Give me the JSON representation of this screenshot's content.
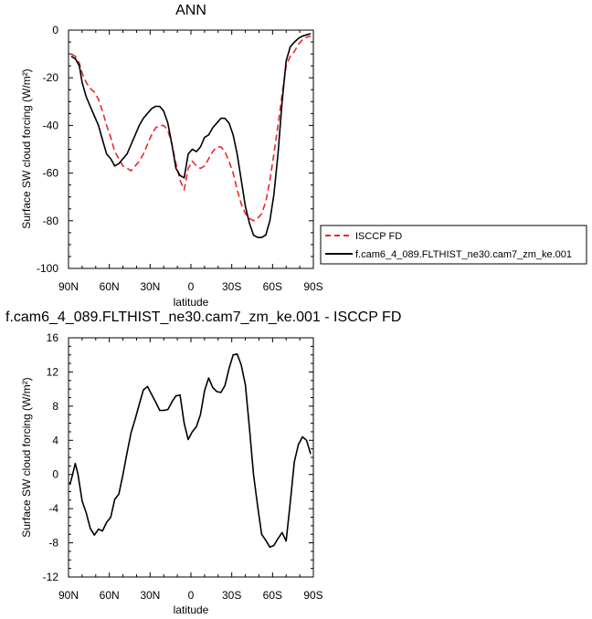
{
  "chart_data": [
    {
      "type": "line",
      "title": "ANN",
      "xlabel": "latitude",
      "ylabel": "Surface SW cloud forcing (W/m²)",
      "xlim": [
        90,
        -90
      ],
      "ylim": [
        -100,
        0
      ],
      "x_ticks": [
        {
          "value": 90,
          "label": "90N"
        },
        {
          "value": 60,
          "label": "60N"
        },
        {
          "value": 30,
          "label": "30N"
        },
        {
          "value": 0,
          "label": "0"
        },
        {
          "value": -30,
          "label": "30S"
        },
        {
          "value": -60,
          "label": "60S"
        },
        {
          "value": -90,
          "label": "90S"
        }
      ],
      "y_ticks": [
        0,
        -20,
        -40,
        -60,
        -80,
        -100
      ],
      "legend": {
        "placement": "right"
      },
      "series": [
        {
          "name": "ISCCP FD",
          "color": "#e8282b",
          "dash": true,
          "x": [
            88,
            85,
            82,
            80,
            77,
            74,
            71,
            68,
            65,
            62,
            59,
            56,
            53,
            50,
            47,
            44,
            41,
            38,
            35,
            32,
            29,
            26,
            23,
            20,
            17,
            14,
            11,
            8,
            5,
            2,
            -1,
            -4,
            -7,
            -10,
            -13,
            -16,
            -19,
            -22,
            -25,
            -28,
            -31,
            -34,
            -37,
            -40,
            -43,
            -46,
            -49,
            -52,
            -55,
            -58,
            -61,
            -64,
            -67,
            -70,
            -73,
            -76,
            -79,
            -82,
            -85,
            -88
          ],
          "y": [
            -10,
            -11,
            -14,
            -18,
            -22,
            -24.5,
            -26,
            -29,
            -34,
            -40,
            -45,
            -51,
            -54,
            -57,
            -58,
            -59,
            -57,
            -55,
            -52,
            -48,
            -44,
            -41,
            -40,
            -40,
            -42,
            -48,
            -56,
            -63,
            -67,
            -58,
            -55,
            -57,
            -58,
            -57,
            -54,
            -51,
            -49,
            -49,
            -51,
            -55,
            -60,
            -67,
            -73,
            -77,
            -79,
            -80,
            -79,
            -77,
            -72,
            -63,
            -52,
            -40,
            -27,
            -15,
            -11,
            -9,
            -6,
            -4,
            -3,
            -2.5
          ]
        },
        {
          "name": "f.cam6_4_089.FLTHIST_ne30.cam7_zm_ke.001",
          "color": "#000000",
          "dash": false,
          "x": [
            88,
            85,
            82,
            80,
            77,
            74,
            71,
            68,
            65,
            62,
            59,
            56,
            53,
            50,
            47,
            44,
            41,
            38,
            35,
            32,
            29,
            26,
            23,
            20,
            17,
            14,
            11,
            8,
            5,
            2,
            -1,
            -4,
            -7,
            -10,
            -13,
            -16,
            -19,
            -22,
            -25,
            -28,
            -31,
            -34,
            -37,
            -40,
            -43,
            -46,
            -49,
            -52,
            -55,
            -58,
            -61,
            -64,
            -67,
            -70,
            -73,
            -76,
            -79,
            -82,
            -85,
            -88
          ],
          "y": [
            -11,
            -12,
            -15,
            -22,
            -28,
            -32,
            -36,
            -40,
            -46,
            -52,
            -54,
            -57,
            -56,
            -54,
            -52,
            -48,
            -44,
            -40,
            -37,
            -35,
            -33,
            -32,
            -32,
            -34,
            -39,
            -48,
            -58,
            -61,
            -62,
            -52,
            -50,
            -51,
            -49,
            -45,
            -44,
            -41,
            -39,
            -37,
            -37,
            -39,
            -44,
            -52,
            -63,
            -74,
            -81,
            -86,
            -87,
            -87,
            -86,
            -80,
            -69,
            -52,
            -30,
            -13,
            -7,
            -5,
            -3.5,
            -2.5,
            -2,
            -1.5
          ]
        }
      ]
    },
    {
      "type": "line",
      "title": "f.cam6_4_089.FLTHIST_ne30.cam7_zm_ke.001 - ISCCP FD",
      "xlabel": "latitude",
      "ylabel": "Surface SW cloud forcing (W/m²)",
      "xlim": [
        90,
        -90
      ],
      "ylim": [
        -12,
        16
      ],
      "x_ticks": [
        {
          "value": 90,
          "label": "90N"
        },
        {
          "value": 60,
          "label": "60N"
        },
        {
          "value": 30,
          "label": "30N"
        },
        {
          "value": 0,
          "label": "0"
        },
        {
          "value": -30,
          "label": "30S"
        },
        {
          "value": -60,
          "label": "60S"
        },
        {
          "value": -90,
          "label": "90S"
        }
      ],
      "y_ticks": [
        16,
        12,
        8,
        4,
        0,
        -4,
        -8,
        -12
      ],
      "series": [
        {
          "color": "#000000",
          "dash": false,
          "x": [
            89,
            87,
            85,
            83,
            80,
            77,
            74,
            71,
            68,
            65,
            62,
            59,
            56,
            53,
            50,
            47,
            44,
            41,
            38,
            35,
            32,
            29,
            26,
            23,
            20,
            17,
            14,
            11,
            8,
            5,
            2,
            -1,
            -4,
            -7,
            -10,
            -13,
            -16,
            -19,
            -22,
            -25,
            -28,
            -31,
            -34,
            -37,
            -40,
            -43,
            -46,
            -49,
            -52,
            -55,
            -58,
            -61,
            -64,
            -67,
            -70,
            -73,
            -76,
            -79,
            -82,
            -85,
            -88
          ],
          "y": [
            -1.2,
            0,
            1.3,
            0,
            -3.1,
            -4.5,
            -6.3,
            -7.1,
            -6.4,
            -6.6,
            -5.6,
            -5,
            -2.9,
            -2.3,
            0,
            2.5,
            4.9,
            6.5,
            8.2,
            9.9,
            10.3,
            9.4,
            8.5,
            7.5,
            7.5,
            7.6,
            8.5,
            9.2,
            9.3,
            6,
            4.1,
            5,
            5.6,
            7,
            9.8,
            11.3,
            10.2,
            9.7,
            9.6,
            10.4,
            12.4,
            14,
            14.1,
            12.8,
            10.5,
            5.5,
            0,
            -3.7,
            -7,
            -7.7,
            -8.5,
            -8.3,
            -7.5,
            -6.8,
            -7.8,
            -3.3,
            1.5,
            3.5,
            4.4,
            4,
            2.4
          ]
        }
      ]
    }
  ]
}
